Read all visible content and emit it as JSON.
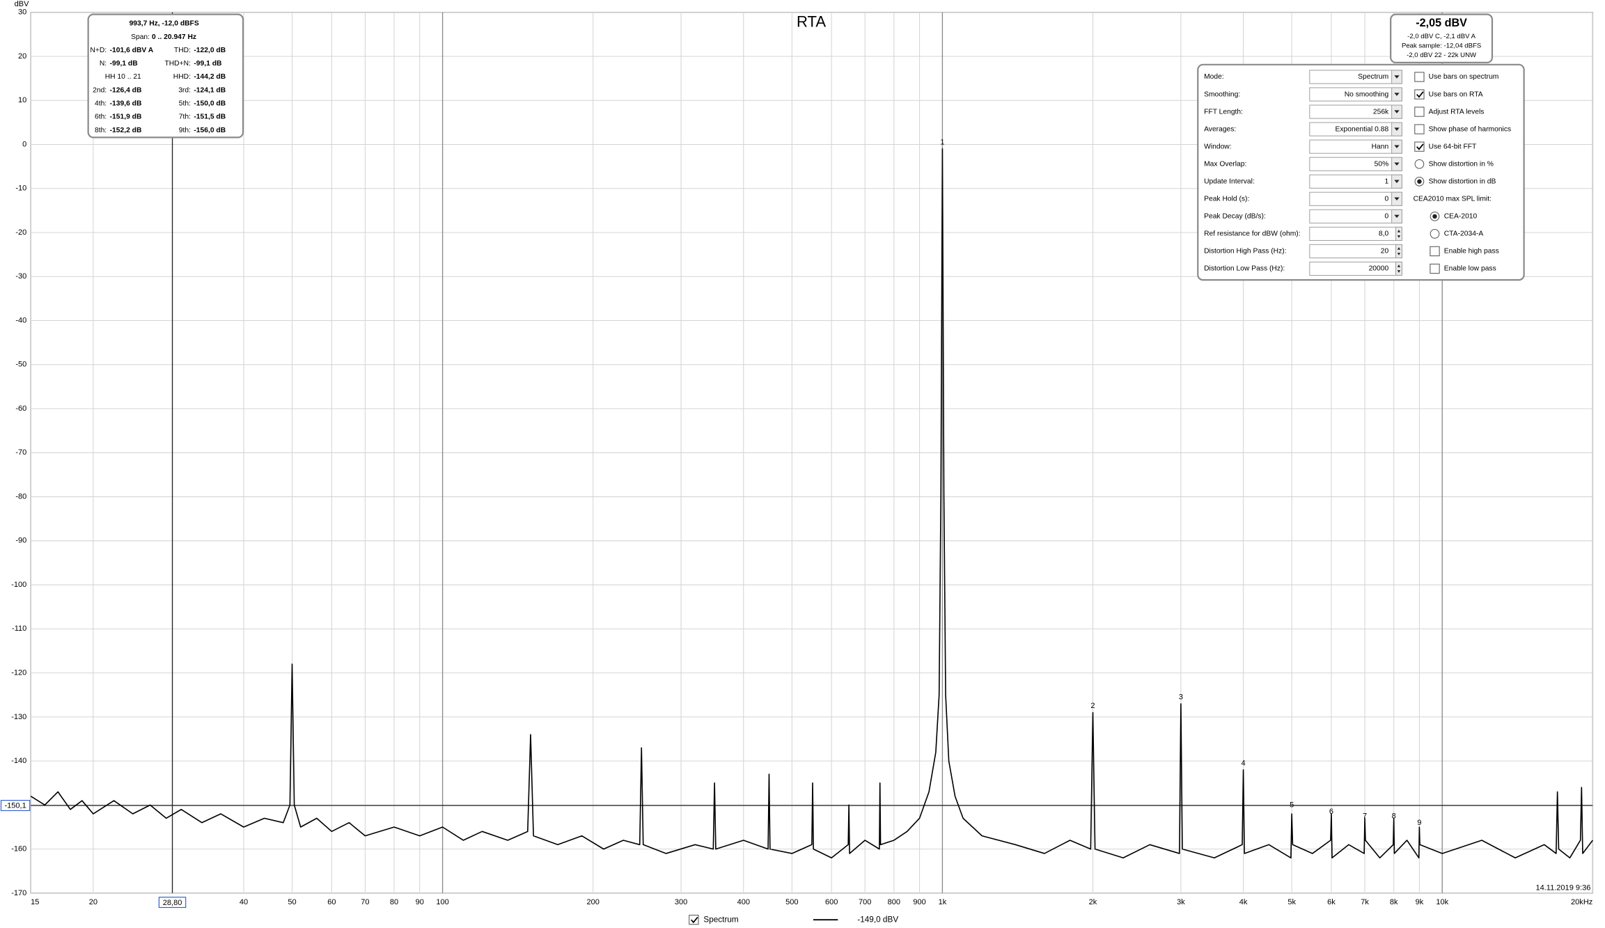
{
  "chart_data": {
    "type": "line",
    "title": "RTA",
    "y_label": "dBV",
    "xscale": "log",
    "xlim": [
      15,
      20000
    ],
    "ylim": [
      -170,
      30
    ],
    "grid": true,
    "xticks": [
      15,
      20,
      40,
      50,
      60,
      70,
      80,
      90,
      100,
      200,
      300,
      400,
      500,
      600,
      700,
      800,
      900,
      {
        "value": 1000,
        "label": "1k"
      },
      {
        "value": 2000,
        "label": "2k"
      },
      {
        "value": 3000,
        "label": "3k"
      },
      {
        "value": 4000,
        "label": "4k"
      },
      {
        "value": 5000,
        "label": "5k"
      },
      {
        "value": 6000,
        "label": "6k"
      },
      {
        "value": 7000,
        "label": "7k"
      },
      {
        "value": 8000,
        "label": "8k"
      },
      {
        "value": 9000,
        "label": "9k"
      },
      {
        "value": 10000,
        "label": "10k"
      },
      {
        "value": 20000,
        "label": "20kHz"
      }
    ],
    "yticks": [
      30,
      20,
      10,
      0,
      -10,
      -20,
      -30,
      -40,
      -50,
      -60,
      -70,
      -80,
      -90,
      -100,
      -110,
      -120,
      -130,
      -140,
      -150,
      -160,
      -170
    ],
    "x": [
      15,
      16,
      17,
      18,
      19,
      20,
      22,
      24,
      26,
      28,
      30,
      33,
      36,
      40,
      44,
      48,
      49.5,
      50,
      50.5,
      52,
      56,
      60,
      65,
      70,
      80,
      90,
      100,
      110,
      120,
      135,
      148,
      150,
      152,
      170,
      190,
      210,
      230,
      248,
      250,
      252,
      280,
      320,
      348,
      350,
      352,
      400,
      448,
      450,
      452,
      500,
      548,
      550,
      552,
      600,
      648,
      650,
      652,
      700,
      748,
      750,
      752,
      800,
      850,
      900,
      940,
      970,
      985,
      993,
      1000,
      1007,
      1015,
      1030,
      1060,
      1100,
      1200,
      1400,
      1600,
      1800,
      1980,
      2000,
      2020,
      2300,
      2600,
      2980,
      3000,
      3020,
      3500,
      3980,
      4000,
      4020,
      4500,
      4980,
      5000,
      5020,
      5500,
      5980,
      6000,
      6020,
      6500,
      6980,
      7000,
      7020,
      7500,
      7980,
      8000,
      8020,
      8500,
      8980,
      9000,
      9020,
      10000,
      12000,
      14000,
      16000,
      16900,
      17000,
      17100,
      18000,
      18900,
      19000,
      19100,
      20000
    ],
    "series": [
      {
        "name": "Spectrum",
        "color": "#000000",
        "checked": true,
        "cursor_value": "-149,0 dBV",
        "values": [
          -148,
          -150,
          -147,
          -151,
          -149,
          -152,
          -149,
          -152,
          -150,
          -153,
          -151,
          -154,
          -152,
          -155,
          -153,
          -154,
          -150,
          -118,
          -150,
          -155,
          -153,
          -156,
          -154,
          -157,
          -155,
          -157,
          -155,
          -158,
          -156,
          -158,
          -156,
          -134,
          -157,
          -159,
          -157,
          -160,
          -158,
          -159,
          -137,
          -159,
          -161,
          -159,
          -160,
          -145,
          -160,
          -158,
          -160,
          -143,
          -160,
          -161,
          -159,
          -145,
          -160,
          -162,
          -159,
          -150,
          -161,
          -158,
          -160,
          -145,
          -159,
          -158,
          -156,
          -153,
          -147,
          -138,
          -125,
          -80,
          -1,
          -80,
          -125,
          -140,
          -148,
          -153,
          -157,
          -159,
          -161,
          -158,
          -160,
          -129,
          -160,
          -162,
          -159,
          -161,
          -127,
          -160,
          -162,
          -159,
          -142,
          -161,
          -159,
          -162,
          -152,
          -159,
          -161,
          -158,
          -152,
          -162,
          -159,
          -161,
          -153,
          -158,
          -162,
          -159,
          -153,
          -161,
          -158,
          -162,
          -155,
          -159,
          -161,
          -158,
          -162,
          -159,
          -161,
          -147,
          -160,
          -162,
          -158,
          -146,
          -161,
          -158
        ]
      }
    ],
    "peak_labels": [
      {
        "label": "1",
        "x": 1000,
        "y": 0
      },
      {
        "label": "2",
        "x": 2000,
        "y": -128
      },
      {
        "label": "3",
        "x": 3000,
        "y": -126
      },
      {
        "label": "4",
        "x": 4000,
        "y": -141
      },
      {
        "label": "5",
        "x": 5000,
        "y": -150.5
      },
      {
        "label": "6",
        "x": 6000,
        "y": -152
      },
      {
        "label": "7",
        "x": 7000,
        "y": -153
      },
      {
        "label": "8",
        "x": 8000,
        "y": -153
      },
      {
        "label": "9",
        "x": 9000,
        "y": -154.5
      }
    ],
    "cursor": {
      "x": 28.8,
      "x_label": "28,80",
      "y": -150.1,
      "y_label": "-150,1"
    },
    "timestamp": "14.11.2019 9:36"
  },
  "info_box": {
    "title": "993,7 Hz, -12,0 dBFS",
    "span": {
      "label": "Span:",
      "value": "0 .. 20.947 Hz"
    },
    "rows": [
      [
        {
          "label": "N+D:",
          "value": "-101,6 dBV A"
        },
        {
          "label": "THD:",
          "value": "-122,0 dB"
        }
      ],
      [
        {
          "label": "N:",
          "value": "-99,1 dB"
        },
        {
          "label": "THD+N:",
          "value": "-99,1 dB"
        }
      ],
      [
        {
          "label": "HH 10 .. 21"
        },
        {
          "label": "HHD:",
          "value": "-144,2 dB"
        }
      ],
      [
        {
          "label": "2nd:",
          "value": "-126,4 dB"
        },
        {
          "label": "3rd:",
          "value": "-124,1 dB"
        }
      ],
      [
        {
          "label": "4th:",
          "value": "-139,6 dB"
        },
        {
          "label": "5th:",
          "value": "-150,0 dB"
        }
      ],
      [
        {
          "label": "6th:",
          "value": "-151,9 dB"
        },
        {
          "label": "7th:",
          "value": "-151,5 dB"
        }
      ],
      [
        {
          "label": "8th:",
          "value": "-152,2 dB"
        },
        {
          "label": "9th:",
          "value": "-156,0 dB"
        }
      ]
    ]
  },
  "level_box": {
    "value": "-2,05 dBV",
    "lines": [
      "-2,0 dBV C, -2,1 dBV A",
      "Peak sample: -12,04 dBFS",
      "-2,0 dBV 22 - 22k UNW"
    ]
  },
  "settings_panel": {
    "rows": [
      {
        "label": "Mode:",
        "value": "Spectrum",
        "control": "dropdown"
      },
      {
        "label": "Smoothing:",
        "value": "No  smoothing",
        "control": "dropdown"
      },
      {
        "label": "FFT Length:",
        "value": "256k",
        "control": "dropdown"
      },
      {
        "label": "Averages:",
        "value": "Exponential 0.88",
        "control": "dropdown"
      },
      {
        "label": "Window:",
        "value": "Hann",
        "control": "dropdown"
      },
      {
        "label": "Max Overlap:",
        "value": "50%",
        "control": "dropdown"
      },
      {
        "label": "Update Interval:",
        "value": "1",
        "control": "dropdown"
      },
      {
        "label": "Peak Hold (s):",
        "value": "0",
        "control": "dropdown"
      },
      {
        "label": "Peak Decay (dB/s):",
        "value": "0",
        "control": "dropdown"
      },
      {
        "label": "Ref resistance for dBW (ohm):",
        "value": "8,0",
        "control": "spinner"
      },
      {
        "label": "Distortion High Pass (Hz):",
        "value": "20",
        "control": "spinner"
      },
      {
        "label": "Distortion Low Pass (Hz):",
        "value": "20000",
        "control": "spinner"
      }
    ],
    "options": [
      {
        "label": "Use bars on spectrum",
        "kind": "checkbox",
        "checked": false
      },
      {
        "label": "Use bars on RTA",
        "kind": "checkbox",
        "checked": true
      },
      {
        "label": "Adjust RTA levels",
        "kind": "checkbox",
        "checked": false
      },
      {
        "label": "Show phase of harmonics",
        "kind": "checkbox",
        "checked": false
      },
      {
        "label": "Use 64-bit FFT",
        "kind": "checkbox",
        "checked": true
      },
      {
        "label": "Show distortion in %",
        "kind": "radio",
        "checked": false
      },
      {
        "label": "Show distortion in dB",
        "kind": "radio",
        "checked": true
      },
      {
        "label": "CEA2010 max SPL limit:",
        "kind": "heading"
      },
      {
        "label": "CEA-2010",
        "kind": "radio",
        "checked": true
      },
      {
        "label": "CTA-2034-A",
        "kind": "radio",
        "checked": false
      },
      {
        "label": "Enable high pass",
        "kind": "checkbox",
        "checked": false
      },
      {
        "label": "Enable low pass",
        "kind": "checkbox",
        "checked": false
      }
    ]
  }
}
